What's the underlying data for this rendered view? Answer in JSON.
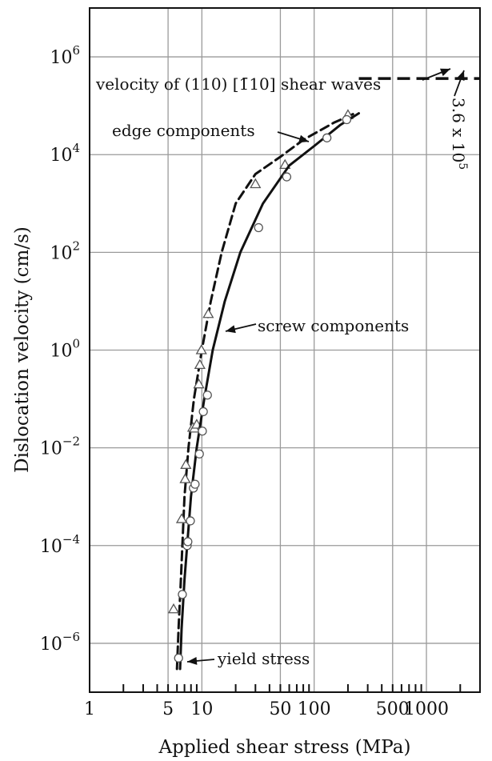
{
  "chart_data": {
    "type": "line",
    "title": "",
    "xlabel": "Applied shear stress (MPa)",
    "ylabel": "Dislocation velocity (cm/s)",
    "x_scale": "log",
    "y_scale": "log",
    "xlim": [
      1,
      3000
    ],
    "ylim": [
      1e-07,
      10000000.0
    ],
    "grid": true,
    "x_ticks": [
      {
        "value": 1,
        "label": "1"
      },
      {
        "value": 5,
        "label": "5"
      },
      {
        "value": 10,
        "label": "10"
      },
      {
        "value": 50,
        "label": "50"
      },
      {
        "value": 100,
        "label": "100"
      },
      {
        "value": 500,
        "label": "500"
      },
      {
        "value": 1000,
        "label": "1000"
      }
    ],
    "y_ticks": [
      {
        "value": 1e-06,
        "base": "10",
        "exp": "−6"
      },
      {
        "value": 0.0001,
        "base": "10",
        "exp": "−4"
      },
      {
        "value": 0.01,
        "base": "10",
        "exp": "−2"
      },
      {
        "value": 1,
        "base": "10",
        "exp": "0"
      },
      {
        "value": 100,
        "base": "10",
        "exp": "2"
      },
      {
        "value": 10000.0,
        "base": "10",
        "exp": "4"
      },
      {
        "value": 1000000.0,
        "base": "10",
        "exp": "6"
      }
    ],
    "series": [
      {
        "name": "edge components",
        "style": "dashed",
        "marker": "triangle",
        "curve": [
          [
            6.0,
            3e-07
          ],
          [
            6.2,
            2e-06
          ],
          [
            6.5,
            2e-05
          ],
          [
            7.0,
            0.001
          ],
          [
            7.6,
            0.01
          ],
          [
            8.5,
            0.1
          ],
          [
            10,
            1
          ],
          [
            12,
            10
          ],
          [
            15,
            100
          ],
          [
            20,
            1000
          ],
          [
            30,
            4000
          ],
          [
            50,
            9000
          ],
          [
            80,
            20000
          ],
          [
            150,
            45000
          ],
          [
            230,
            70000
          ]
        ],
        "points": [
          [
            5.6,
            5e-06
          ],
          [
            6.6,
            0.00035
          ],
          [
            7.1,
            0.0023
          ],
          [
            7.2,
            0.0045
          ],
          [
            8.3,
            0.026
          ],
          [
            8.6,
            0.025
          ],
          [
            9.0,
            0.03
          ],
          [
            9.4,
            0.2
          ],
          [
            9.6,
            0.5
          ],
          [
            9.9,
            1.0
          ],
          [
            11.4,
            5.5
          ],
          [
            30,
            2500
          ],
          [
            55,
            6200
          ],
          [
            200,
            65000
          ]
        ]
      },
      {
        "name": "screw components",
        "style": "solid",
        "marker": "circle",
        "curve": [
          [
            6.4,
            3e-07
          ],
          [
            6.6,
            2e-06
          ],
          [
            7.0,
            2e-05
          ],
          [
            8.0,
            0.001
          ],
          [
            9.0,
            0.01
          ],
          [
            10.5,
            0.1
          ],
          [
            12.5,
            1
          ],
          [
            16,
            10
          ],
          [
            22,
            100
          ],
          [
            35,
            1000
          ],
          [
            60,
            6000
          ],
          [
            100,
            15000
          ],
          [
            170,
            40000
          ],
          [
            250,
            70000
          ]
        ],
        "points": [
          [
            6.2,
            5e-07
          ],
          [
            6.7,
            1e-05
          ],
          [
            7.4,
            0.0001
          ],
          [
            7.5,
            0.00012
          ],
          [
            7.9,
            0.00032
          ],
          [
            8.4,
            0.0015
          ],
          [
            8.7,
            0.0018
          ],
          [
            9.5,
            0.0075
          ],
          [
            10.1,
            0.022
          ],
          [
            10.3,
            0.055
          ],
          [
            11.2,
            0.12
          ],
          [
            32,
            320
          ],
          [
            57,
            3500
          ],
          [
            130,
            22000
          ],
          [
            195,
            52000
          ]
        ]
      }
    ],
    "reference_line": {
      "label": "velocity of (110) [ū10] shear waves",
      "value": 360000,
      "x_range": [
        250,
        3000
      ],
      "style": "dashed"
    },
    "annotations": [
      {
        "text": "velocity of (110) [1̄10] shear waves",
        "points_to": "shear-wave-line"
      },
      {
        "text": "3.6 x 10",
        "sup": "5",
        "points_to": "shear-wave-line"
      },
      {
        "text": "edge components",
        "points_to": "edge-curve"
      },
      {
        "text": "screw components",
        "points_to": "screw-curve"
      },
      {
        "text": "yield stress",
        "points_to": "curve-start"
      }
    ]
  }
}
